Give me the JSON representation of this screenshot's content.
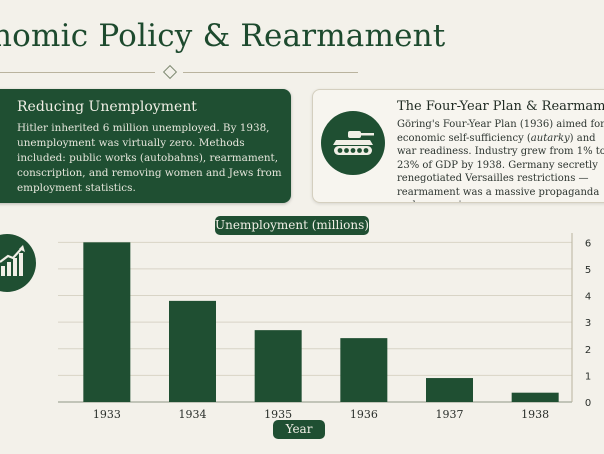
{
  "header": {
    "title": "nomic Policy & Rearmament"
  },
  "cards": {
    "unemployment": {
      "heading": "Reducing Unemployment",
      "body": "Hitler inherited 6 million unemployed. By 1938, unemployment was virtually zero. Methods included: public works (autobahns), rearmament, conscription, and removing women and Jews from employment statistics."
    },
    "four_year_plan": {
      "heading": "The Four-Year Plan & Rearmament",
      "body_before": "Göring's Four-Year Plan (1936) aimed for economic self-sufficiency (",
      "body_emph": "autarky",
      "body_after": ") and war readiness. Industry grew from 1% to 23% of GDP by 1938. Germany secretly renegotiated Versailles restrictions — rearmament was a massive propaganda and economic success."
    }
  },
  "icons": {
    "plan_badge": "tank-icon",
    "chart_badge": "growth-chart-icon"
  },
  "colors": {
    "primary": "#1f4f32",
    "background": "#f3f1ea"
  },
  "chart_data": {
    "type": "bar",
    "title": "Unemployment (millions)",
    "xlabel": "Year",
    "ylabel": "",
    "categories": [
      "1933",
      "1934",
      "1935",
      "1936",
      "1937",
      "1938"
    ],
    "values": [
      6.0,
      3.8,
      2.7,
      2.4,
      0.9,
      0.35
    ],
    "yticks": [
      0,
      1,
      2,
      3,
      4,
      5,
      6
    ],
    "ylim": [
      0,
      6.2
    ],
    "grid": true,
    "axis_side": "right",
    "color": "#1f4f32"
  }
}
